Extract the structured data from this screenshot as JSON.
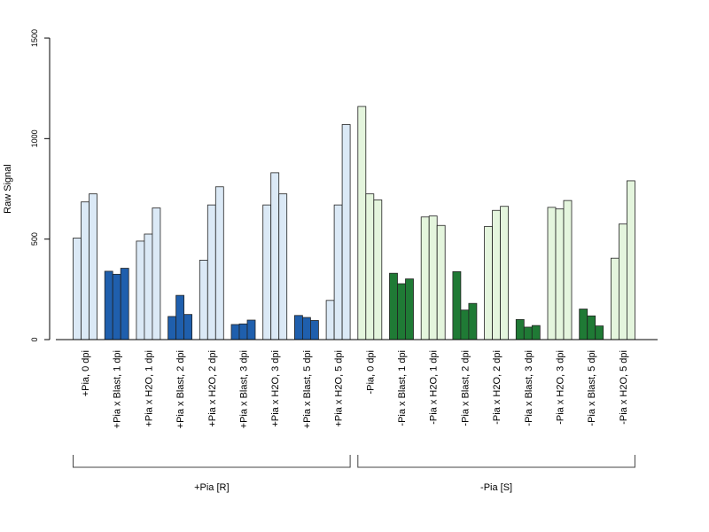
{
  "chart_data": {
    "type": "bar",
    "ylabel": "Raw Signal",
    "ylim": [
      0,
      1500
    ],
    "yticks": [
      0,
      500,
      1000,
      1500
    ],
    "categories": [
      "+Pia, 0 dpi",
      "+Pia x Blast, 1 dpi",
      "+Pia x H2O, 1 dpi",
      "+Pia x Blast, 2 dpi",
      "+Pia x H2O, 2 dpi",
      "+Pia x Blast, 3 dpi",
      "+Pia x H2O, 3 dpi",
      "+Pia x Blast, 5 dpi",
      "+Pia x H2O, 5 dpi",
      "-Pia, 0 dpi",
      "-Pia x Blast, 1 dpi",
      "-Pia x H2O, 1 dpi",
      "-Pia x Blast, 2 dpi",
      "-Pia x H2O, 2 dpi",
      "-Pia x Blast, 3 dpi",
      "-Pia x H2O, 3 dpi",
      "-Pia x Blast, 5 dpi",
      "-Pia x H2O, 5 dpi"
    ],
    "values": [
      [
        505,
        685,
        725
      ],
      [
        340,
        325,
        355
      ],
      [
        490,
        525,
        655
      ],
      [
        115,
        220,
        125
      ],
      [
        395,
        670,
        760
      ],
      [
        75,
        78,
        97
      ],
      [
        670,
        830,
        725
      ],
      [
        120,
        110,
        95
      ],
      [
        195,
        670,
        1070
      ],
      [
        1160,
        725,
        695
      ],
      [
        330,
        278,
        302
      ],
      [
        610,
        615,
        568
      ],
      [
        338,
        147,
        180
      ],
      [
        563,
        643,
        663
      ],
      [
        100,
        62,
        70
      ],
      [
        658,
        650,
        692
      ],
      [
        152,
        118,
        68
      ],
      [
        405,
        575,
        790
      ]
    ],
    "colors": [
      "#dbe9f6",
      "#1f5fad",
      "#dbe9f6",
      "#1f5fad",
      "#dbe9f6",
      "#1f5fad",
      "#dbe9f6",
      "#1f5fad",
      "#dbe9f6",
      "#e4f5dd",
      "#1f7a35",
      "#e4f5dd",
      "#1f7a35",
      "#e4f5dd",
      "#1f7a35",
      "#e4f5dd",
      "#1f7a35",
      "#e4f5dd"
    ],
    "groups": [
      {
        "label": "+Pia [R]",
        "from": 0,
        "to": 8
      },
      {
        "label": "-Pia [S]",
        "from": 9,
        "to": 17
      }
    ]
  }
}
